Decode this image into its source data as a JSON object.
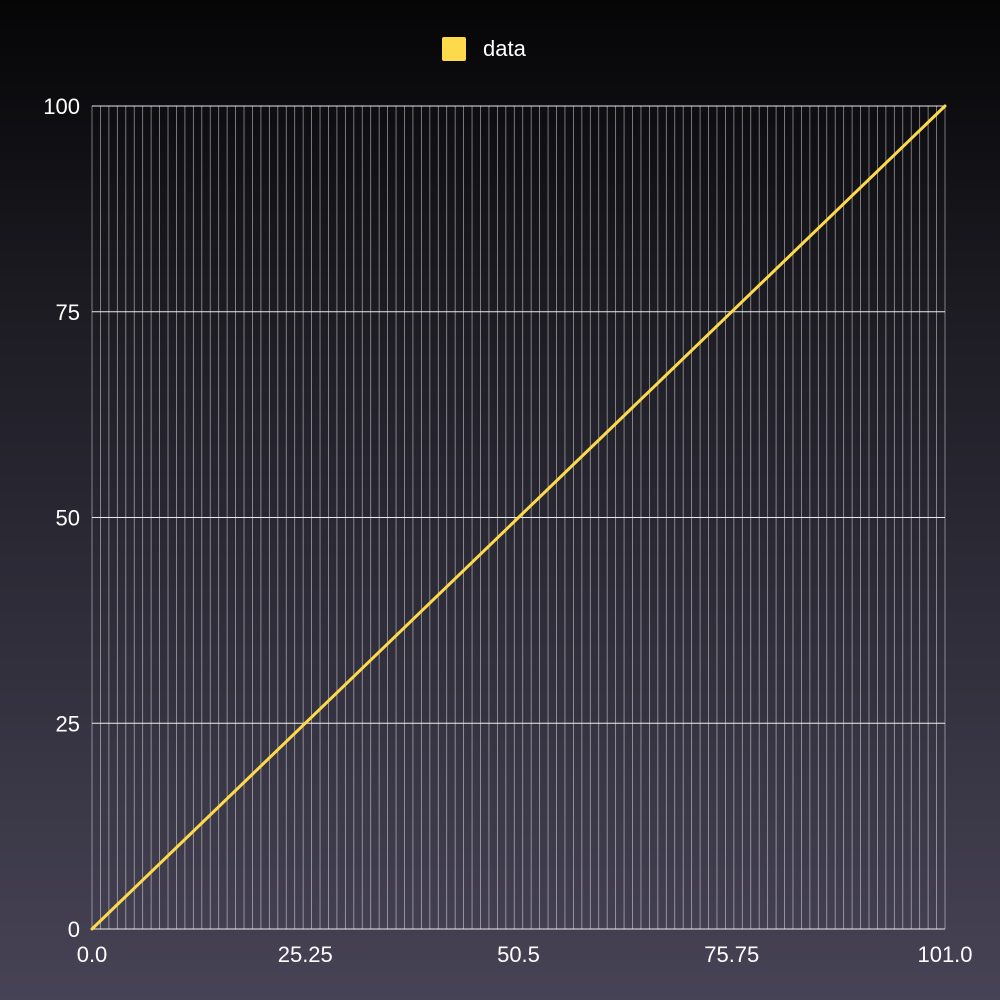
{
  "chart_data": {
    "type": "line",
    "title": "",
    "xlabel": "",
    "ylabel": "",
    "xlim": [
      0,
      101
    ],
    "ylim": [
      0,
      100
    ],
    "x_ticks": [
      "0.0",
      "25.25",
      "50.5",
      "75.75",
      "101.0"
    ],
    "y_ticks": [
      "0",
      "25",
      "50",
      "75",
      "100"
    ],
    "x_tick_values": [
      0,
      25.25,
      50.5,
      75.75,
      101
    ],
    "y_tick_values": [
      0,
      25,
      50,
      75,
      100
    ],
    "grid": true,
    "vertical_grid_step": 1,
    "legend_position": "top-center",
    "series": [
      {
        "name": "data",
        "color": "#fdd94c",
        "x": [
          0,
          101
        ],
        "y": [
          0,
          100
        ]
      }
    ]
  },
  "colors": {
    "grid": "#ffffff",
    "text": "#ffffff",
    "line": "#fdd94c"
  }
}
